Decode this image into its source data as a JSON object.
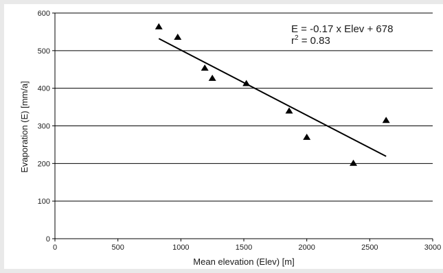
{
  "chart_data": {
    "type": "scatter",
    "xlabel": "Mean elevation (Elev) [m]",
    "ylabel": "Evaporation (E) [mm/a]",
    "xlim": [
      0,
      3000
    ],
    "ylim": [
      0,
      600
    ],
    "xticks": [
      "0",
      "500",
      "1000",
      "1500",
      "2000",
      "2500",
      "3000"
    ],
    "yticks": [
      "0",
      "100",
      "200",
      "300",
      "400",
      "500",
      "600"
    ],
    "grid": "horizontal",
    "marker": "triangle",
    "points": {
      "x": [
        825,
        975,
        1190,
        1250,
        1520,
        1860,
        2000,
        2370,
        2630
      ],
      "y": [
        565,
        537,
        455,
        428,
        414,
        341,
        271,
        202,
        316
      ]
    },
    "trendline": {
      "x": [
        825,
        2630
      ],
      "y": [
        532,
        219
      ]
    },
    "annotation": {
      "line1": "E = -0.17 x Elev + 678",
      "line2_prefix": "r",
      "line2_sup": "2",
      "line2_suffix": " = 0.83"
    }
  }
}
